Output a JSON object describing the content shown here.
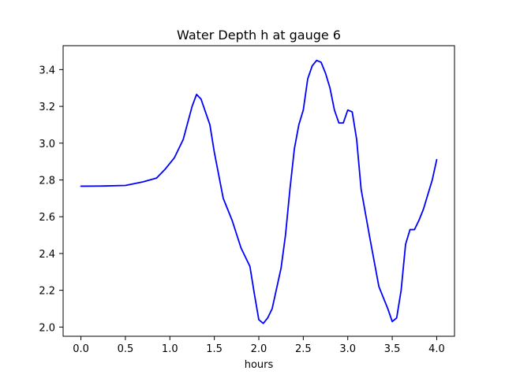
{
  "chart_data": {
    "type": "line",
    "title": "Water Depth h at gauge 6",
    "xlabel": "hours",
    "ylabel": "",
    "xlim": [
      -0.2,
      4.2
    ],
    "ylim": [
      1.95,
      3.53
    ],
    "xticks": [
      0.0,
      0.5,
      1.0,
      1.5,
      2.0,
      2.5,
      3.0,
      3.5,
      4.0
    ],
    "yticks": [
      2.0,
      2.2,
      2.4,
      2.6,
      2.8,
      3.0,
      3.2,
      3.4
    ],
    "xtick_labels": [
      "0.0",
      "0.5",
      "1.0",
      "1.5",
      "2.0",
      "2.5",
      "3.0",
      "3.5",
      "4.0"
    ],
    "ytick_labels": [
      "2.0",
      "2.2",
      "2.4",
      "2.6",
      "2.8",
      "3.0",
      "3.2",
      "3.4"
    ],
    "grid": false,
    "legend": "none",
    "series": [
      {
        "color": "#0000ff",
        "x": [
          0.0,
          0.25,
          0.5,
          0.7,
          0.85,
          0.95,
          1.05,
          1.15,
          1.25,
          1.3,
          1.35,
          1.45,
          1.5,
          1.6,
          1.7,
          1.8,
          1.9,
          1.95,
          2.0,
          2.05,
          2.1,
          2.15,
          2.25,
          2.3,
          2.35,
          2.4,
          2.45,
          2.5,
          2.55,
          2.6,
          2.65,
          2.7,
          2.75,
          2.8,
          2.85,
          2.9,
          2.95,
          3.0,
          3.05,
          3.1,
          3.15,
          3.25,
          3.35,
          3.45,
          3.5,
          3.55,
          3.6,
          3.65,
          3.7,
          3.75,
          3.8,
          3.85,
          3.9,
          3.95,
          4.0
        ],
        "y": [
          2.766,
          2.767,
          2.77,
          2.79,
          2.81,
          2.86,
          2.92,
          3.02,
          3.2,
          3.265,
          3.24,
          3.1,
          2.95,
          2.7,
          2.58,
          2.43,
          2.33,
          2.18,
          2.04,
          2.02,
          2.05,
          2.1,
          2.32,
          2.5,
          2.75,
          2.97,
          3.1,
          3.18,
          3.35,
          3.42,
          3.45,
          3.44,
          3.38,
          3.3,
          3.18,
          3.11,
          3.11,
          3.18,
          3.17,
          3.02,
          2.75,
          2.48,
          2.22,
          2.1,
          2.03,
          2.05,
          2.2,
          2.45,
          2.53,
          2.53,
          2.58,
          2.64,
          2.72,
          2.8,
          2.91
        ]
      }
    ]
  }
}
